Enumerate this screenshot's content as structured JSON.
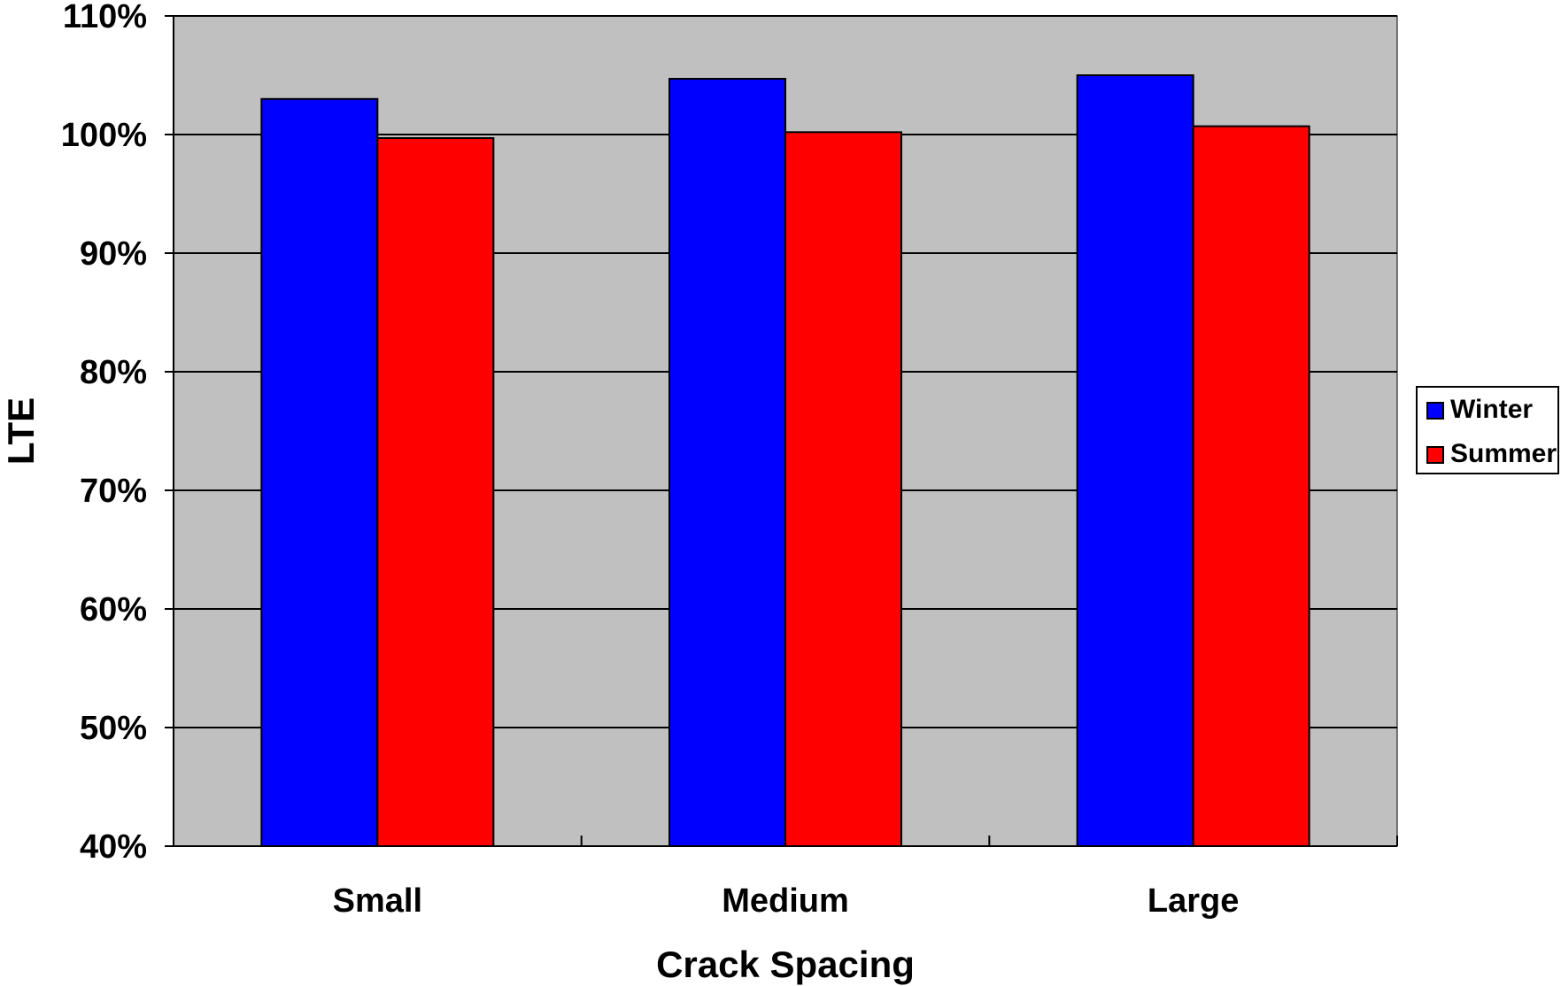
{
  "chart_data": {
    "type": "bar",
    "title": "",
    "xlabel": "Crack Spacing",
    "ylabel": "LTE",
    "categories": [
      "Small",
      "Medium",
      "Large"
    ],
    "series": [
      {
        "name": "Winter",
        "color": "#0000ff",
        "values": [
          103,
          104.7,
          105
        ]
      },
      {
        "name": "Summer",
        "color": "#ff0000",
        "values": [
          99.7,
          100.2,
          100.7
        ]
      }
    ],
    "ylim": [
      40,
      110
    ],
    "yticks": [
      40,
      50,
      60,
      70,
      80,
      90,
      100,
      110
    ],
    "ytick_labels": [
      "40%",
      "50%",
      "60%",
      "70%",
      "80%",
      "90%",
      "100%",
      "110%"
    ],
    "grid": true,
    "plot_background": "#c0c0c0",
    "legend_position": "right"
  }
}
